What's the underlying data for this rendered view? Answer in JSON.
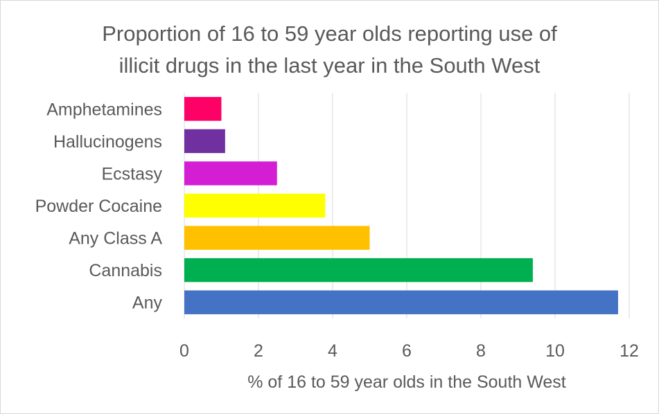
{
  "chart_data": {
    "type": "bar",
    "orientation": "horizontal",
    "title_lines": [
      "Proportion of 16 to 59 year olds reporting use of",
      "illicit drugs in the last year in the South West"
    ],
    "xlabel": "% of 16 to 59 year olds in the South West",
    "ylabel": "",
    "xlim": [
      0,
      12
    ],
    "xticks": [
      "0",
      "2",
      "4",
      "6",
      "8",
      "10",
      "12"
    ],
    "grid": true,
    "legend": "none",
    "categories": [
      "Amphetamines",
      "Hallucinogens",
      "Ecstasy",
      "Powder Cocaine",
      "Any Class A",
      "Cannabis",
      "Any"
    ],
    "values": [
      1.0,
      1.1,
      2.5,
      3.8,
      5.0,
      9.4,
      11.7
    ],
    "colors": [
      "#FF0066",
      "#7030A0",
      "#D41ED4",
      "#FFFF00",
      "#FFC000",
      "#00B050",
      "#4472C4"
    ]
  }
}
